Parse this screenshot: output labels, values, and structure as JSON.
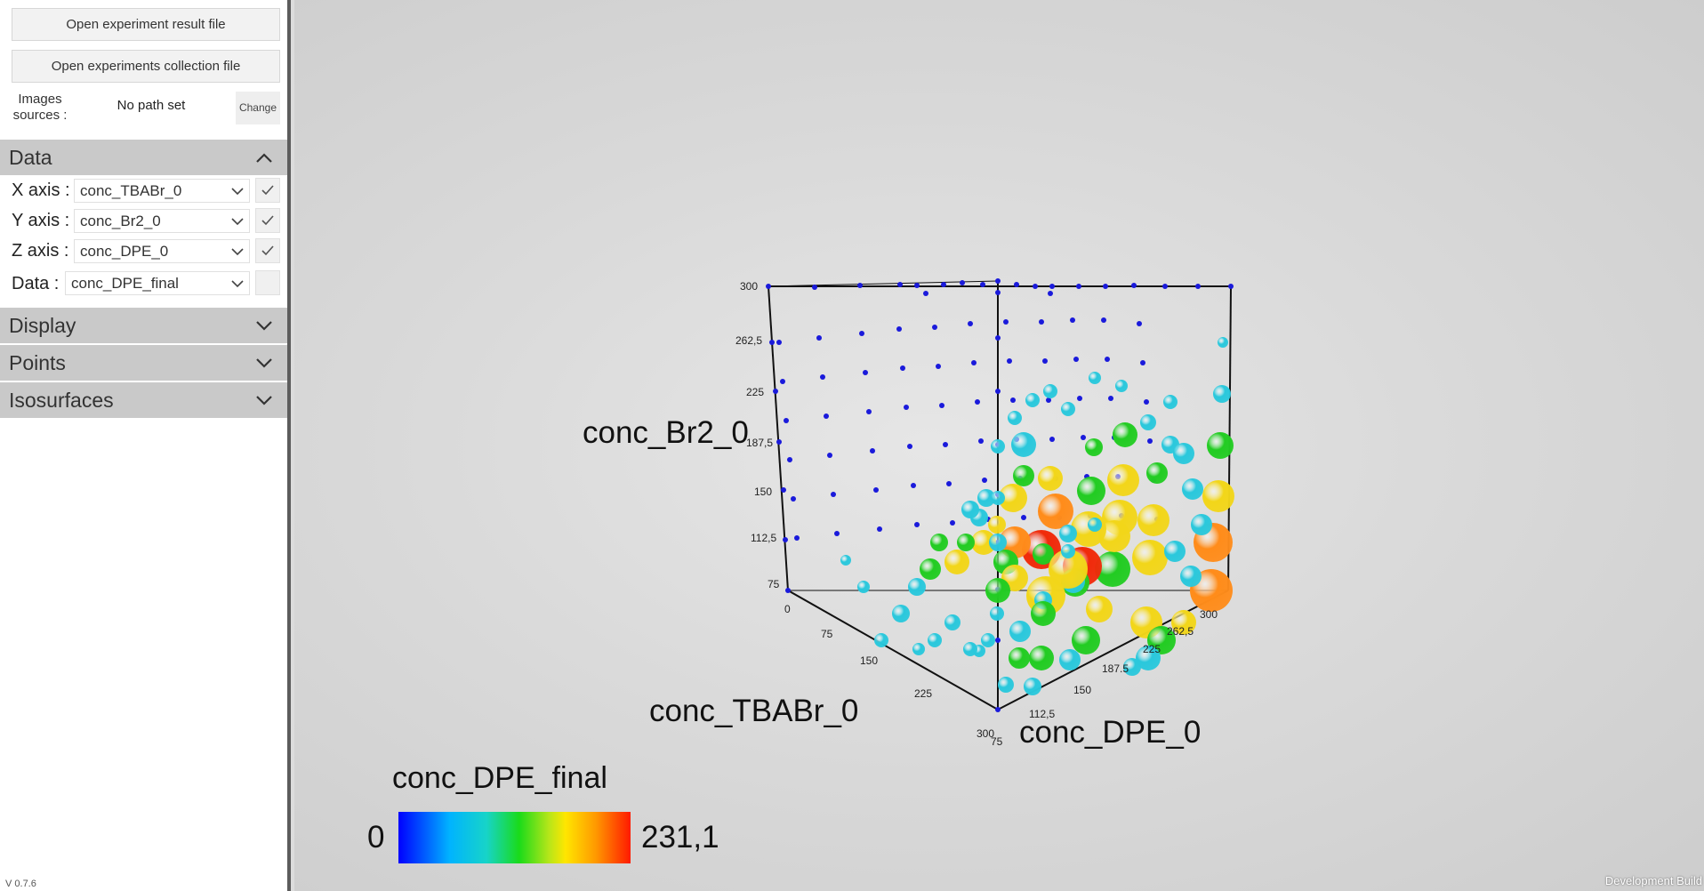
{
  "sidebar": {
    "open_result_label": "Open experiment result file",
    "open_collection_label": "Open experiments collection file",
    "images_sources_label": "Images sources :",
    "path_value": "No path set",
    "change_label": "Change",
    "sections": {
      "data": "Data",
      "display": "Display",
      "points": "Points",
      "isosurfaces": "Isosurfaces"
    },
    "data_rows": {
      "x_label": "X axis :",
      "x_value": "conc_TBABr_0",
      "x_checked": true,
      "y_label": "Y axis :",
      "y_value": "conc_Br2_0",
      "y_checked": true,
      "z_label": "Z axis :",
      "z_value": "conc_DPE_0",
      "z_checked": true,
      "data_label": "Data :",
      "data_value": "conc_DPE_final",
      "data_checked": false
    },
    "version": "V 0.7.6"
  },
  "viewport": {
    "axis_labels": {
      "y": "conc_Br2_0",
      "x": "conc_TBABr_0",
      "z": "conc_DPE_0"
    },
    "ticks": {
      "y": [
        "300",
        "262,5",
        "225",
        "187,5",
        "150",
        "112,5",
        "75"
      ],
      "x": [
        "0",
        "75",
        "150",
        "225",
        "300"
      ],
      "z": [
        "75",
        "112,5",
        "150",
        "187.5",
        "225",
        "262,5",
        "300"
      ]
    },
    "legend": {
      "title": "conc_DPE_final",
      "min": "0",
      "max": "231,1"
    },
    "dev_build": "Development Build",
    "colors": {
      "point_low": "#1a1adb",
      "point_cyan": "#2ac8dc",
      "point_green": "#22cc22",
      "point_yellow": "#f2d619",
      "point_orange": "#ff8c1a",
      "point_red": "#f02a0a"
    }
  }
}
